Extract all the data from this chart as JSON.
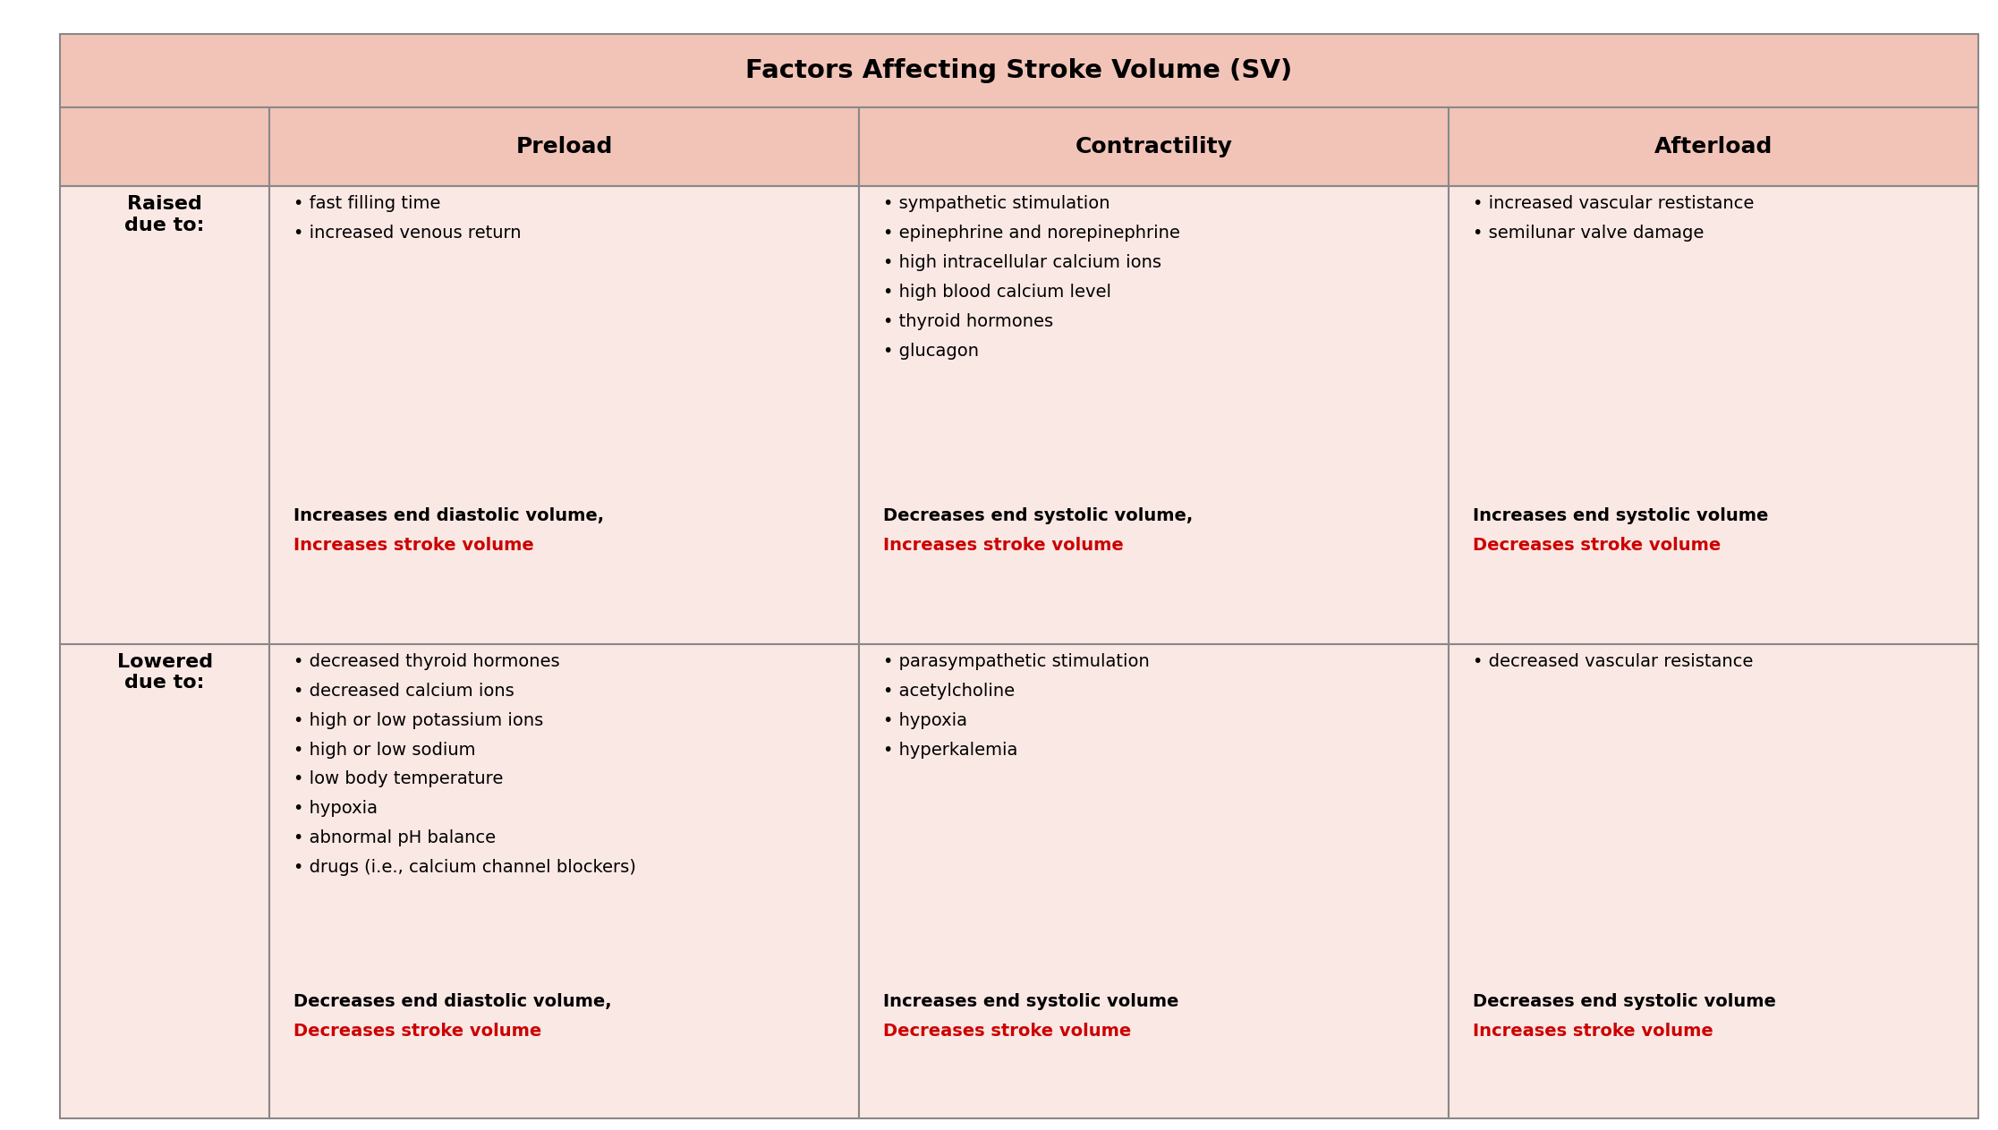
{
  "title": "Factors Affecting Stroke Volume (SV)",
  "header_bg": "#f2c4b8",
  "cell_bg": "#fae8e4",
  "border_color": "#888888",
  "title_color": "#000000",
  "header_color": "#000000",
  "black_color": "#000000",
  "red_color": "#cc0000",
  "background": "#ffffff",
  "col_headers": [
    "Preload",
    "Contractility",
    "Afterload"
  ],
  "raised_preload_bullets": [
    "• fast filling time",
    "• increased venous return"
  ],
  "raised_preload_summary_black": "Increases end diastolic volume,",
  "raised_preload_summary_red": "Increases stroke volume",
  "raised_contractility_bullets": [
    "• sympathetic stimulation",
    "• epinephrine and norepinephrine",
    "• high intracellular calcium ions",
    "• high blood calcium level",
    "• thyroid hormones",
    "• glucagon"
  ],
  "raised_contractility_summary_black": "Decreases end systolic volume,",
  "raised_contractility_summary_red": "Increases stroke volume",
  "raised_afterload_bullets": [
    "• increased vascular restistance",
    "• semilunar valve damage"
  ],
  "raised_afterload_summary_black": "Increases end systolic volume",
  "raised_afterload_summary_red": "Decreases stroke volume",
  "lowered_preload_bullets": [
    "• decreased thyroid hormones",
    "• decreased calcium ions",
    "• high or low potassium ions",
    "• high or low sodium",
    "• low body temperature",
    "• hypoxia",
    "• abnormal pH balance",
    "• drugs (i.e., calcium channel blockers)"
  ],
  "lowered_preload_summary_black": "Decreases end diastolic volume,",
  "lowered_preload_summary_red": "Decreases stroke volume",
  "lowered_contractility_bullets": [
    "• parasympathetic stimulation",
    "• acetylcholine",
    "• hypoxia",
    "• hyperkalemia"
  ],
  "lowered_contractility_summary_black": "Increases end systolic volume",
  "lowered_contractility_summary_red": "Decreases stroke volume",
  "lowered_afterload_bullets": [
    "• decreased vascular resistance"
  ],
  "lowered_afterload_summary_black": "Decreases end systolic volume",
  "lowered_afterload_summary_red": "Increases stroke volume"
}
